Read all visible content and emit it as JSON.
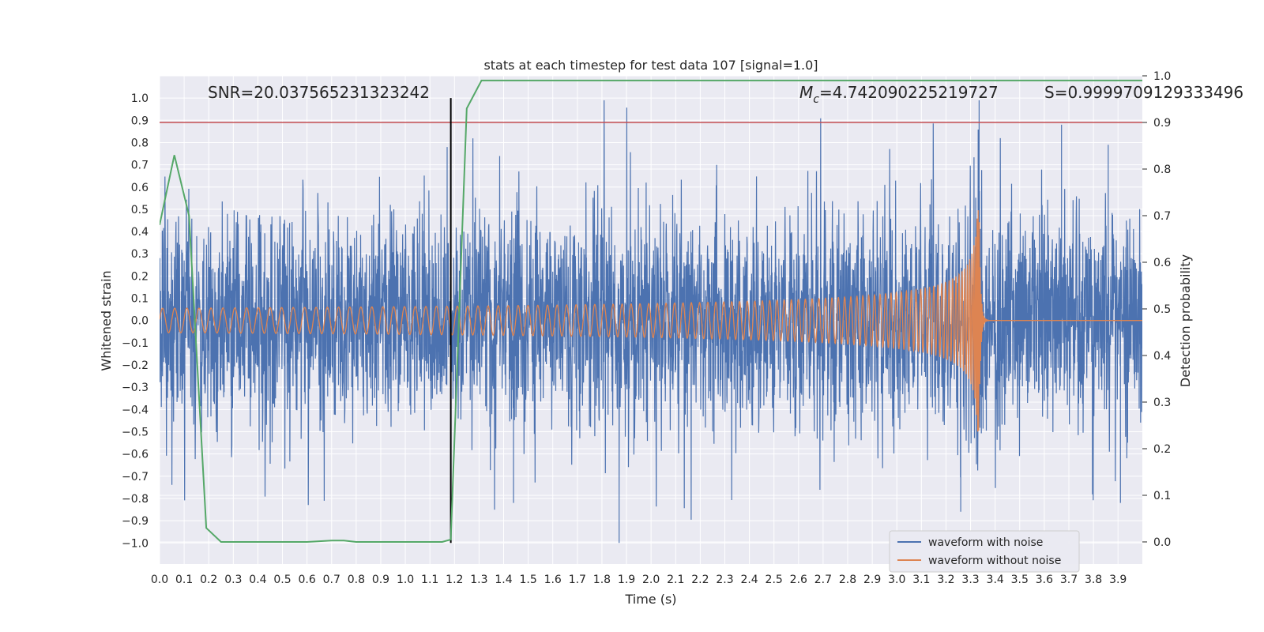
{
  "chart_data": {
    "type": "line",
    "title": "stats at each timestep for test data 107 [signal=1.0]",
    "xlabel": "Time (s)",
    "ylabel": "Whitened strain",
    "y2label": "Detection probability",
    "xlim": [
      0.0,
      3.999
    ],
    "ylim": [
      -1.095,
      1.1
    ],
    "y2lim": [
      -0.0475,
      1.0
    ],
    "x_ticks": [
      "0.0",
      "0.1",
      "0.2",
      "0.3",
      "0.4",
      "0.5",
      "0.6",
      "0.7",
      "0.8",
      "0.9",
      "1.0",
      "1.1",
      "1.2",
      "1.3",
      "1.4",
      "1.5",
      "1.6",
      "1.7",
      "1.8",
      "1.9",
      "2.0",
      "2.1",
      "2.2",
      "2.3",
      "2.4",
      "2.5",
      "2.6",
      "2.7",
      "2.8",
      "2.9",
      "3.0",
      "3.1",
      "3.2",
      "3.3",
      "3.4",
      "3.5",
      "3.6",
      "3.7",
      "3.8",
      "3.9"
    ],
    "y_ticks": [
      "1.0",
      "0.9",
      "0.8",
      "0.7",
      "0.6",
      "0.5",
      "0.4",
      "0.3",
      "0.2",
      "0.1",
      "0.0",
      "−0.1",
      "−0.2",
      "−0.3",
      "−0.4",
      "−0.5",
      "−0.6",
      "−0.7",
      "−0.8",
      "−0.9",
      "−1.0"
    ],
    "y2_ticks": [
      "1.0",
      "0.9",
      "0.8",
      "0.7",
      "0.6",
      "0.5",
      "0.4",
      "0.3",
      "0.2",
      "0.1",
      "0.0"
    ],
    "annotations": {
      "snr": "SNR=20.037565231323242",
      "mc_symbol": "M",
      "mc_subscript": "c",
      "mc_value": "=4.742090225219727",
      "s": "S=0.9999709129333496"
    },
    "series": [
      {
        "name": "waveform with noise",
        "color": "#4c72b0",
        "description": "whitened strain, noise amplitude ~0.4 with spikes up to ~1.0",
        "spike_peaks": [
          [
            3.335,
            0.99
          ],
          [
            3.67,
            0.88
          ],
          [
            3.86,
            0.79
          ],
          [
            1.17,
            0.78
          ],
          [
            1.87,
            -1.0
          ],
          [
            3.26,
            -0.86
          ],
          [
            3.91,
            -0.82
          ],
          [
            1.44,
            -0.82
          ]
        ]
      },
      {
        "name": "waveform without noise",
        "color": "#dd8452",
        "chirp_start": 0.0,
        "chirp_merger": 3.335,
        "amplitude_start": 0.055,
        "amplitude_peak": 0.5
      },
      {
        "name": "detection probability",
        "axis": "right",
        "color": "#55a868",
        "x": [
          0.0,
          0.06,
          0.12,
          0.19,
          0.25,
          0.3,
          0.45,
          0.6,
          0.7,
          0.75,
          0.8,
          1.0,
          1.15,
          1.185,
          1.25,
          1.31,
          1.5,
          2.0,
          3.0,
          3.999
        ],
        "y": [
          0.68,
          0.83,
          0.7,
          0.03,
          0.0,
          0.0,
          0.0,
          0.0,
          0.003,
          0.003,
          0.0,
          0.0,
          0.0,
          0.005,
          0.93,
          0.99,
          0.99,
          0.99,
          0.99,
          0.99
        ]
      }
    ],
    "threshold": {
      "axis": "right",
      "value": 0.9,
      "color": "#c44e52"
    },
    "marker_line": {
      "x": 1.185,
      "color": "#000000",
      "y_from": -1.0,
      "y_to": 1.0
    },
    "legend": {
      "position": "lower-right",
      "entries": [
        "waveform with noise",
        "waveform without noise"
      ]
    },
    "grid": true
  }
}
